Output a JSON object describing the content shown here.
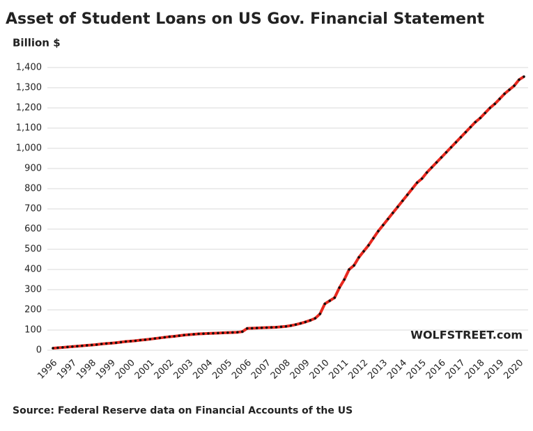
{
  "chart_data": {
    "type": "line",
    "title": "Asset of Student Loans on US Gov. Financial Statement",
    "subtitle": "Billion $",
    "annotation": "WOLFSTREET.com",
    "source": "Source: Federal Reserve data on Financial Accounts of the US",
    "categories": [
      "1996",
      null,
      null,
      null,
      "1997",
      null,
      null,
      null,
      "1998",
      null,
      null,
      null,
      "1999",
      null,
      null,
      null,
      "2000",
      null,
      null,
      null,
      "2001",
      null,
      null,
      null,
      "2002",
      null,
      null,
      null,
      "2003",
      null,
      null,
      null,
      "2004",
      null,
      null,
      null,
      "2005",
      null,
      null,
      null,
      "2006",
      null,
      null,
      null,
      "2007",
      null,
      null,
      null,
      "2008",
      null,
      null,
      null,
      "2009",
      null,
      null,
      null,
      "2010",
      null,
      null,
      null,
      "2011",
      null,
      null,
      null,
      "2012",
      null,
      null,
      null,
      "2013",
      null,
      null,
      null,
      "2014",
      null,
      null,
      null,
      "2015",
      null,
      null,
      null,
      "2016",
      null,
      null,
      null,
      "2017",
      null,
      null,
      null,
      "2018",
      null,
      null,
      null,
      "2019",
      null,
      null,
      null,
      "2020",
      null
    ],
    "series": [
      {
        "name": "Student loans",
        "color": "#e8281e",
        "values": [
          10,
          12,
          14,
          16,
          18,
          20,
          22,
          24,
          26,
          28,
          31,
          33,
          35,
          37,
          40,
          43,
          45,
          47,
          50,
          52,
          55,
          58,
          61,
          64,
          67,
          69,
          72,
          75,
          77,
          79,
          81,
          82,
          83,
          84,
          85,
          86,
          87,
          88,
          89,
          92,
          108,
          109,
          110,
          111,
          112,
          113,
          114,
          116,
          118,
          122,
          127,
          133,
          140,
          148,
          158,
          180,
          230,
          245,
          260,
          310,
          350,
          400,
          420,
          460,
          490,
          520,
          555,
          590,
          620,
          650,
          680,
          710,
          740,
          770,
          800,
          830,
          850,
          880,
          905,
          930,
          955,
          980,
          1005,
          1030,
          1055,
          1080,
          1105,
          1130,
          1150,
          1175,
          1200,
          1220,
          1245,
          1270,
          1290,
          1310,
          1340,
          1355
        ]
      }
    ],
    "ylim": [
      0,
      1400
    ],
    "yticks": [
      0,
      100,
      200,
      300,
      400,
      500,
      600,
      700,
      800,
      900,
      {
        "value": 1000,
        "label": "1,000"
      },
      {
        "value": 1100,
        "label": "1,100"
      },
      {
        "value": 1200,
        "label": "1,200"
      },
      {
        "value": 1300,
        "label": "1,300"
      },
      {
        "value": 1400,
        "label": "1,400"
      }
    ],
    "grid": true,
    "marker_color": "#111111"
  }
}
